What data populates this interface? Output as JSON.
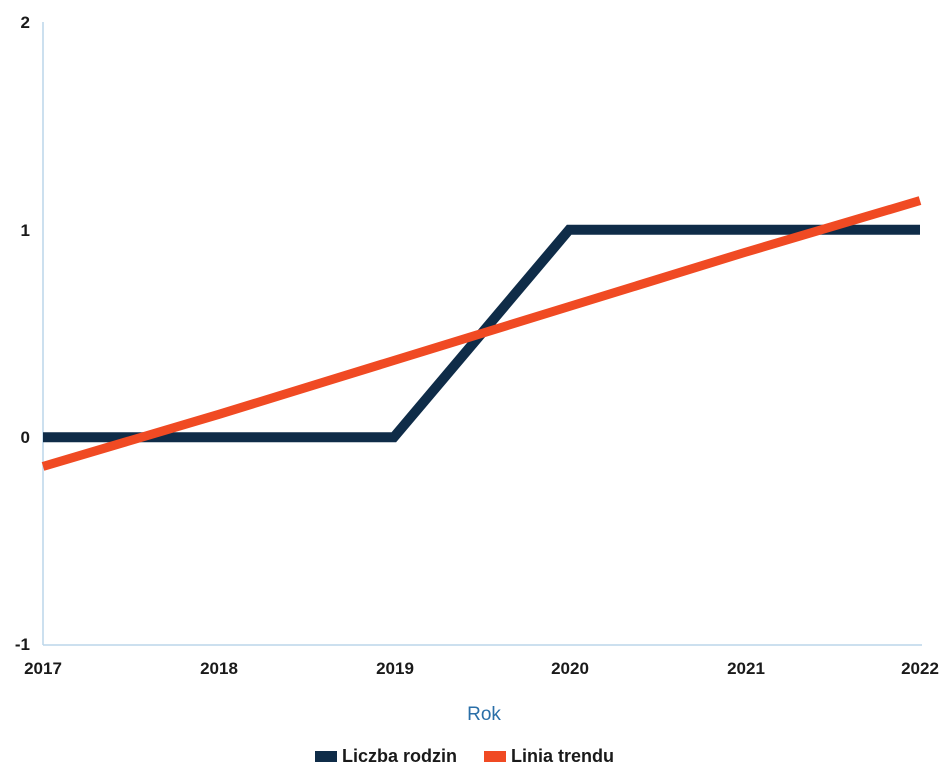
{
  "chart_data": {
    "type": "line",
    "x": [
      2017,
      2018,
      2019,
      2020,
      2021,
      2022
    ],
    "xlabel": "Rok",
    "ylabel": "",
    "ylim": [
      -1,
      2
    ],
    "yticks": [
      "2",
      "1",
      "0",
      "-1"
    ],
    "xticks": [
      "2017",
      "2018",
      "2019",
      "2020",
      "2021",
      "2022"
    ],
    "grid": false,
    "legend_position": "bottom",
    "series": [
      {
        "name": "Liczba rodzin",
        "color": "#0f2c48",
        "values": [
          0,
          0,
          0,
          1,
          1,
          1
        ]
      },
      {
        "name": "Linia trendu",
        "color": "#f04a23",
        "values": [
          -0.14,
          0.11,
          0.37,
          0.63,
          0.89,
          1.14
        ]
      }
    ]
  }
}
